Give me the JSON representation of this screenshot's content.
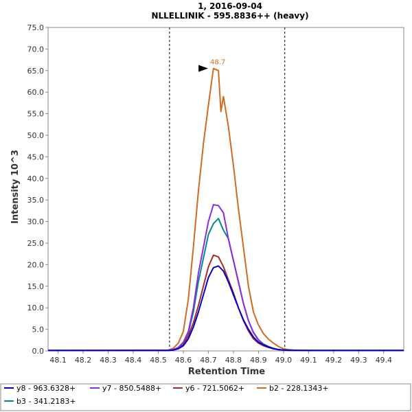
{
  "chart_data": {
    "type": "line",
    "title": "1, 2016-09-04",
    "subtitle": "NLLELLINIK - 595.8836++ (heavy)",
    "xlabel": "Retention Time",
    "ylabel": "Intensity 10^3",
    "xlim": [
      48.06,
      49.48
    ],
    "ylim": [
      0,
      75
    ],
    "xticks": [
      "48.1",
      "48.2",
      "48.3",
      "48.4",
      "48.5",
      "48.6",
      "48.7",
      "48.8",
      "48.9",
      "49.0",
      "49.1",
      "49.2",
      "49.3",
      "49.4"
    ],
    "yticks": [
      "0.0",
      "5.0",
      "10.0",
      "15.0",
      "20.0",
      "25.0",
      "30.0",
      "35.0",
      "40.0",
      "45.0",
      "50.0",
      "55.0",
      "60.0",
      "65.0",
      "70.0",
      "75.0"
    ],
    "integration_bounds": [
      48.545,
      49.005
    ],
    "peak_annotation": {
      "x": 48.71,
      "y": 65.5,
      "label": "48.7",
      "color": "#d2691e"
    },
    "legend_position": "bottom",
    "series": [
      {
        "name": "y8 - 963.6328+",
        "color": "#0000cc",
        "x": [
          48.06,
          48.54,
          48.56,
          48.58,
          48.6,
          48.62,
          48.64,
          48.66,
          48.68,
          48.7,
          48.72,
          48.74,
          48.76,
          48.78,
          48.8,
          48.82,
          48.84,
          48.86,
          48.88,
          48.9,
          48.92,
          48.94,
          48.96,
          48.98,
          49.0,
          49.02,
          49.1,
          49.48
        ],
        "y": [
          0.1,
          0.1,
          0.2,
          0.5,
          1.2,
          2.8,
          5.5,
          9.0,
          13.0,
          17.0,
          19.3,
          19.7,
          18.5,
          16.0,
          13.0,
          10.0,
          7.2,
          5.0,
          3.2,
          2.0,
          1.4,
          0.9,
          0.5,
          0.3,
          0.2,
          0.15,
          0.1,
          0.1
        ]
      },
      {
        "name": "y7 - 850.5488+",
        "color": "#8a2be2",
        "x": [
          48.06,
          48.54,
          48.56,
          48.58,
          48.6,
          48.62,
          48.64,
          48.66,
          48.68,
          48.7,
          48.72,
          48.74,
          48.76,
          48.78,
          48.8,
          48.82,
          48.84,
          48.86,
          48.88,
          48.9,
          48.92,
          48.94,
          48.96,
          48.98,
          49.0,
          49.02,
          49.1,
          49.48
        ],
        "y": [
          0.1,
          0.1,
          0.3,
          0.8,
          2.0,
          4.5,
          10.0,
          18.0,
          24.0,
          30.0,
          33.9,
          33.7,
          32.0,
          26.0,
          21.0,
          16.0,
          11.0,
          7.0,
          4.2,
          2.5,
          1.5,
          0.9,
          0.5,
          0.3,
          0.2,
          0.15,
          0.1,
          0.1
        ]
      },
      {
        "name": "y6 - 721.5062+",
        "color": "#a52a2a",
        "x": [
          48.06,
          48.54,
          48.56,
          48.58,
          48.6,
          48.62,
          48.64,
          48.66,
          48.68,
          48.7,
          48.72,
          48.74,
          48.76,
          48.78,
          48.8,
          48.82,
          48.84,
          48.86,
          48.88,
          48.9,
          48.92,
          48.94,
          48.96,
          48.98,
          49.0,
          49.02,
          49.1,
          49.48
        ],
        "y": [
          0.1,
          0.1,
          0.2,
          0.6,
          1.5,
          3.5,
          6.5,
          10.5,
          15.0,
          19.5,
          22.2,
          21.8,
          19.5,
          16.5,
          13.5,
          10.0,
          7.0,
          4.6,
          2.8,
          1.8,
          1.2,
          0.8,
          0.5,
          0.3,
          0.2,
          0.15,
          0.1,
          0.1
        ]
      },
      {
        "name": "b2 - 228.1343+",
        "color": "#d2691e",
        "x": [
          48.06,
          48.54,
          48.56,
          48.58,
          48.6,
          48.62,
          48.64,
          48.66,
          48.68,
          48.7,
          48.72,
          48.74,
          48.75,
          48.76,
          48.78,
          48.8,
          48.82,
          48.84,
          48.86,
          48.88,
          48.9,
          48.92,
          48.94,
          48.96,
          48.98,
          49.0,
          49.02,
          49.04,
          49.1,
          49.48
        ],
        "y": [
          0.1,
          0.2,
          0.6,
          1.8,
          4.5,
          12.0,
          24.0,
          37.0,
          48.0,
          57.0,
          65.5,
          65.0,
          55.5,
          59.0,
          52.0,
          43.0,
          33.0,
          24.0,
          15.0,
          9.0,
          6.0,
          4.0,
          2.7,
          1.8,
          1.0,
          0.5,
          0.3,
          0.2,
          0.1,
          0.1
        ]
      },
      {
        "name": "b3 - 341.2183+",
        "color": "#008b8b",
        "x": [
          48.06,
          48.54,
          48.56,
          48.58,
          48.6,
          48.62,
          48.64,
          48.66,
          48.68,
          48.7,
          48.72,
          48.74,
          48.76,
          48.78,
          48.8,
          48.82,
          48.84,
          48.86,
          48.88,
          48.9,
          48.92,
          48.94,
          48.96,
          48.98,
          49.0,
          49.02,
          49.1,
          49.48
        ],
        "y": [
          0.1,
          0.1,
          0.3,
          0.8,
          2.0,
          4.2,
          9.0,
          16.0,
          21.5,
          27.0,
          29.5,
          30.7,
          28.0,
          26.0,
          21.0,
          16.0,
          11.0,
          7.0,
          4.3,
          2.6,
          1.6,
          1.0,
          0.6,
          0.3,
          0.2,
          0.15,
          0.1,
          0.1
        ]
      }
    ]
  }
}
